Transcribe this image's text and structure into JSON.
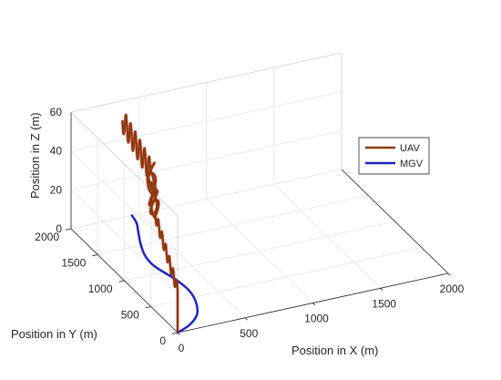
{
  "chart_data": {
    "type": "line",
    "xlabel": "Position in X (m)",
    "ylabel": "Position in Y (m)",
    "zlabel": "Position in Z (m)",
    "xlim": [
      0,
      2000
    ],
    "ylim": [
      0,
      2000
    ],
    "zlim": [
      0,
      60
    ],
    "xticks": [
      "0",
      "500",
      "1000",
      "1500",
      "2000"
    ],
    "yticks": [
      "0",
      "500",
      "1000",
      "1500",
      "2000"
    ],
    "zticks": [
      "0",
      "20",
      "40",
      "60"
    ],
    "grid": true,
    "legend_position": "right",
    "series": [
      {
        "name": "UAV",
        "color": "#8b3a0f",
        "segments": [
          {
            "kind": "climb",
            "x": [
              0,
              0
            ],
            "y": [
              0,
              0
            ],
            "z": [
              0,
              22
            ]
          },
          {
            "kind": "oscillation",
            "start": [
              0,
              0,
              22
            ],
            "end": [
              250,
              1050,
              28
            ],
            "amplitude": 3,
            "cycles": 6
          },
          {
            "kind": "hover",
            "x": [
              250,
              310
            ],
            "y": [
              1050,
              1300
            ],
            "z": [
              28,
              44
            ],
            "amplitude": 7,
            "cycles": 5
          },
          {
            "kind": "oscillation",
            "start": [
              310,
              1300,
              44
            ],
            "end": [
              380,
              2000,
              50
            ],
            "amplitude": 6,
            "cycles": 6
          }
        ]
      },
      {
        "name": "MGV",
        "color": "#1f24c4",
        "path_xy": [
          [
            0,
            0
          ],
          [
            120,
            80
          ],
          [
            230,
            220
          ],
          [
            300,
            420
          ],
          [
            330,
            620
          ],
          [
            320,
            820
          ],
          [
            290,
            1000
          ],
          [
            270,
            1150
          ],
          [
            280,
            1320
          ],
          [
            320,
            1500
          ],
          [
            380,
            1700
          ],
          [
            430,
            1860
          ],
          [
            450,
            2000
          ]
        ]
      }
    ]
  },
  "legend": {
    "items": [
      {
        "label": "UAV",
        "color": "#8b3a0f"
      },
      {
        "label": "MGV",
        "color": "#1f24c4"
      }
    ]
  }
}
